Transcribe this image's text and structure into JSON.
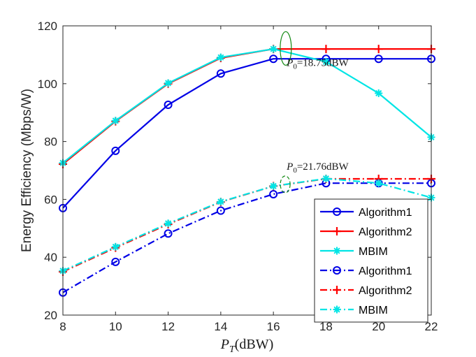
{
  "chart_data": {
    "type": "line",
    "title": "",
    "xlabel": {
      "var": "P",
      "sub": "T",
      "unit": "(dBW)"
    },
    "ylabel": "Energy Efficiency (Mbps/W)",
    "xlim": [
      8,
      22
    ],
    "ylim": [
      20,
      120
    ],
    "x": [
      8,
      10,
      12,
      14,
      16,
      18,
      20,
      22
    ],
    "xticks": [
      8,
      10,
      12,
      14,
      16,
      18,
      20,
      22
    ],
    "yticks": [
      20,
      40,
      60,
      80,
      100,
      120
    ],
    "grid": false,
    "legend_position": "bottom-right",
    "series": [
      {
        "name": "Algorithm1",
        "color": "#0000e6",
        "style": "solid",
        "marker": "circle",
        "values": [
          57.0,
          76.8,
          92.7,
          103.5,
          108.6,
          108.6,
          108.6,
          108.6
        ]
      },
      {
        "name": "Algorithm2",
        "color": "#ff0000",
        "style": "solid",
        "marker": "plus",
        "values": [
          72.2,
          87.0,
          100.0,
          108.9,
          112.0,
          112.0,
          112.0,
          112.0
        ]
      },
      {
        "name": "MBIM",
        "color": "#00e5e5",
        "style": "solid",
        "marker": "star",
        "values": [
          72.6,
          87.2,
          100.2,
          109.1,
          112.0,
          107.6,
          96.7,
          81.5
        ]
      },
      {
        "name": "Algorithm1",
        "color": "#0000e6",
        "style": "dashdot",
        "marker": "circle",
        "values": [
          27.8,
          38.4,
          48.2,
          56.1,
          61.8,
          65.6,
          65.6,
          65.6
        ]
      },
      {
        "name": "Algorithm2",
        "color": "#ff0000",
        "style": "dashdot",
        "marker": "plus",
        "values": [
          35.0,
          43.3,
          51.4,
          59.1,
          64.6,
          67.1,
          67.1,
          67.1
        ]
      },
      {
        "name": "MBIM",
        "color": "#00e5e5",
        "style": "dashdot",
        "marker": "star",
        "values": [
          35.3,
          43.6,
          51.7,
          59.2,
          64.6,
          67.2,
          65.6,
          60.6
        ]
      }
    ],
    "annotations": [
      {
        "var": "P",
        "sub": "0",
        "text": "=18.75dBW",
        "x": 16.3,
        "y": 110.5
      },
      {
        "var": "P",
        "sub": "0",
        "text": "=21.76dBW",
        "x": 16.3,
        "y": 64.5
      }
    ]
  }
}
